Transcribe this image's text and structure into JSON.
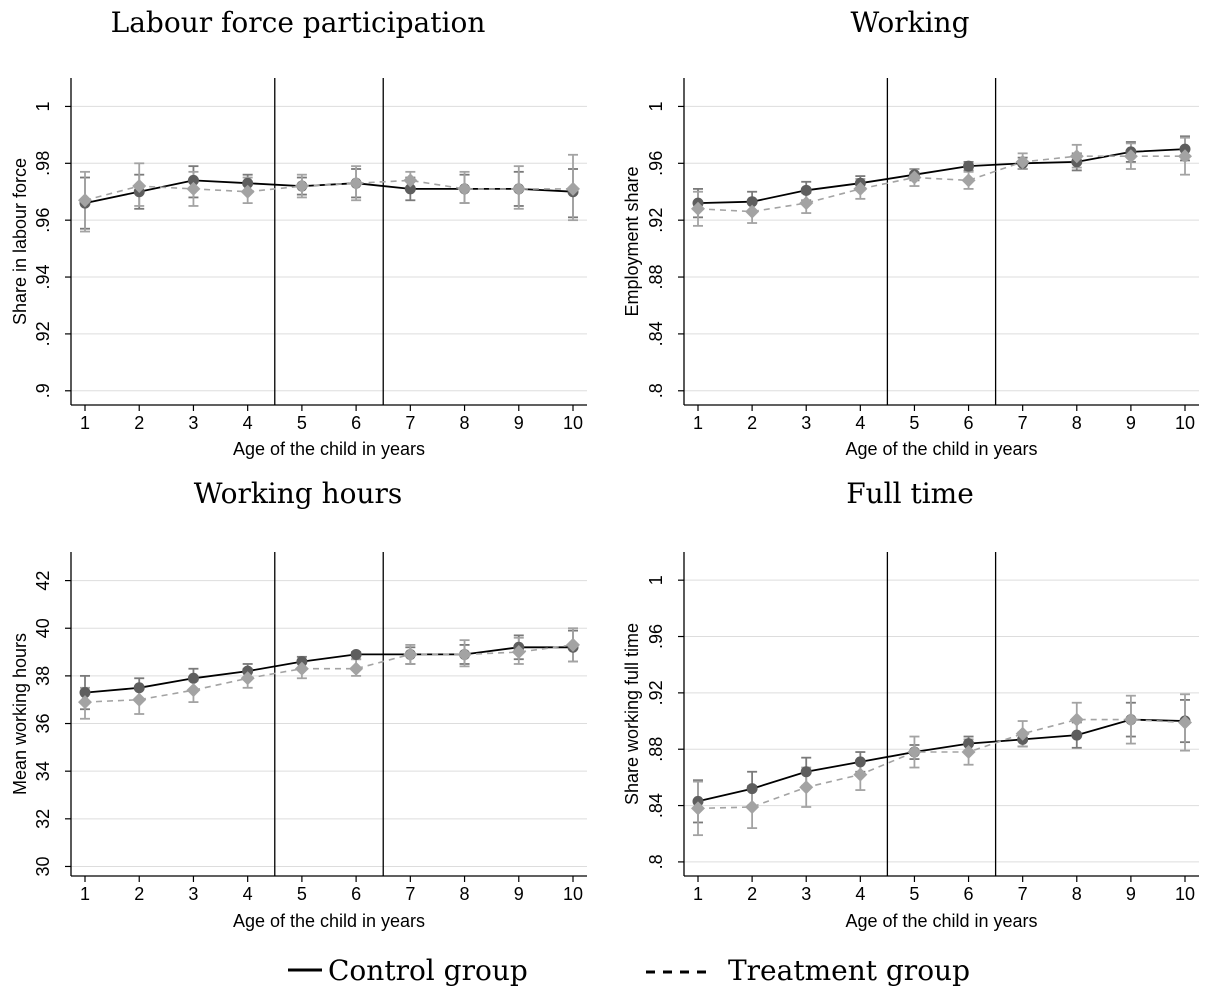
{
  "legend": {
    "control_label": "Control group",
    "treatment_label": "Treatment group"
  },
  "colors": {
    "control": "#5e5e5e",
    "control_line": "#000000",
    "treatment": "#a3a3a3",
    "grid": "#dddddd",
    "ci": "#7a7a7a"
  },
  "chart_data": [
    {
      "type": "line",
      "title": "Labour force participation",
      "xlabel": "Age of the child in years",
      "ylabel": "Share in labour force",
      "x": [
        1,
        2,
        3,
        4,
        5,
        6,
        7,
        8,
        9,
        10
      ],
      "ylim": [
        0.895,
        1.01
      ],
      "yticks": [
        0.9,
        0.92,
        0.94,
        0.96,
        0.98,
        1
      ],
      "ytick_labels": [
        ".9",
        ".92",
        ".94",
        ".96",
        ".98",
        "1"
      ],
      "vlines": [
        4.5,
        6.5
      ],
      "grid": true,
      "series": [
        {
          "name": "Control group",
          "values": [
            0.966,
            0.97,
            0.974,
            0.973,
            0.972,
            0.973,
            0.971,
            0.971,
            0.971,
            0.97
          ],
          "ci_low": [
            0.957,
            0.964,
            0.968,
            0.97,
            0.969,
            0.968,
            0.967,
            0.966,
            0.965,
            0.961
          ],
          "ci_high": [
            0.975,
            0.976,
            0.979,
            0.976,
            0.975,
            0.978,
            0.975,
            0.976,
            0.977,
            0.978
          ]
        },
        {
          "name": "Treatment group",
          "values": [
            0.967,
            0.972,
            0.971,
            0.97,
            0.972,
            0.973,
            0.974,
            0.971,
            0.971,
            0.971
          ],
          "ci_low": [
            0.956,
            0.965,
            0.965,
            0.966,
            0.968,
            0.967,
            0.971,
            0.966,
            0.964,
            0.96
          ],
          "ci_high": [
            0.977,
            0.98,
            0.977,
            0.975,
            0.976,
            0.979,
            0.977,
            0.977,
            0.979,
            0.983
          ]
        }
      ]
    },
    {
      "type": "line",
      "title": "Working",
      "xlabel": "Age of the child in years",
      "ylabel": "Employment share",
      "x": [
        1,
        2,
        3,
        4,
        5,
        6,
        7,
        8,
        9,
        10
      ],
      "ylim": [
        0.79,
        1.02
      ],
      "yticks": [
        0.8,
        0.84,
        0.88,
        0.92,
        0.96,
        1
      ],
      "ytick_labels": [
        ".8",
        ".84",
        ".88",
        ".92",
        ".96",
        "1"
      ],
      "vlines": [
        4.5,
        6.5
      ],
      "grid": true,
      "series": [
        {
          "name": "Control group",
          "values": [
            0.932,
            0.933,
            0.941,
            0.946,
            0.952,
            0.958,
            0.96,
            0.961,
            0.968,
            0.97
          ],
          "ci_low": [
            0.922,
            0.926,
            0.934,
            0.941,
            0.948,
            0.955,
            0.956,
            0.955,
            0.961,
            0.962
          ],
          "ci_high": [
            0.942,
            0.94,
            0.947,
            0.951,
            0.956,
            0.961,
            0.964,
            0.967,
            0.975,
            0.979
          ]
        },
        {
          "name": "Treatment group",
          "values": [
            0.928,
            0.926,
            0.932,
            0.942,
            0.95,
            0.948,
            0.961,
            0.965,
            0.965,
            0.965
          ],
          "ci_low": [
            0.916,
            0.918,
            0.925,
            0.935,
            0.944,
            0.942,
            0.956,
            0.957,
            0.956,
            0.952
          ],
          "ci_high": [
            0.94,
            0.934,
            0.939,
            0.949,
            0.956,
            0.954,
            0.967,
            0.973,
            0.974,
            0.978
          ]
        }
      ]
    },
    {
      "type": "line",
      "title": "Working hours",
      "xlabel": "Age of the child in years",
      "ylabel": "Mean working hours",
      "x": [
        1,
        2,
        3,
        4,
        5,
        6,
        7,
        8,
        9,
        10
      ],
      "ylim": [
        29.6,
        43.2
      ],
      "yticks": [
        30,
        32,
        34,
        36,
        38,
        40,
        42
      ],
      "ytick_labels": [
        "30",
        "32",
        "34",
        "36",
        "38",
        "40",
        "42"
      ],
      "vlines": [
        4.5,
        6.5
      ],
      "grid": true,
      "series": [
        {
          "name": "Control group",
          "values": [
            37.3,
            37.5,
            37.9,
            38.2,
            38.6,
            38.9,
            38.9,
            38.9,
            39.2,
            39.2
          ],
          "ci_low": [
            36.6,
            37.0,
            37.4,
            37.9,
            38.3,
            38.7,
            38.5,
            38.5,
            38.7,
            38.6
          ],
          "ci_high": [
            38.0,
            37.9,
            38.3,
            38.5,
            38.8,
            39.0,
            39.2,
            39.3,
            39.7,
            39.9
          ]
        },
        {
          "name": "Treatment group",
          "values": [
            36.9,
            37.0,
            37.4,
            37.9,
            38.3,
            38.3,
            38.9,
            38.9,
            39.0,
            39.3
          ],
          "ci_low": [
            36.2,
            36.4,
            36.9,
            37.5,
            37.9,
            38.0,
            38.5,
            38.4,
            38.5,
            38.6
          ],
          "ci_high": [
            37.5,
            37.5,
            37.8,
            38.3,
            38.6,
            38.7,
            39.3,
            39.5,
            39.6,
            40.0
          ]
        }
      ]
    },
    {
      "type": "line",
      "title": "Full time",
      "xlabel": "Age of the child in years",
      "ylabel": "Share working full time",
      "x": [
        1,
        2,
        3,
        4,
        5,
        6,
        7,
        8,
        9,
        10
      ],
      "ylim": [
        0.79,
        1.02
      ],
      "yticks": [
        0.8,
        0.84,
        0.88,
        0.92,
        0.96,
        1
      ],
      "ytick_labels": [
        ".8",
        ".84",
        ".88",
        ".92",
        ".96",
        "1"
      ],
      "vlines": [
        4.5,
        6.5
      ],
      "grid": true,
      "series": [
        {
          "name": "Control group",
          "values": [
            0.843,
            0.852,
            0.864,
            0.871,
            0.878,
            0.884,
            0.887,
            0.89,
            0.901,
            0.9
          ],
          "ci_low": [
            0.828,
            0.84,
            0.854,
            0.864,
            0.873,
            0.879,
            0.882,
            0.881,
            0.889,
            0.885
          ],
          "ci_high": [
            0.858,
            0.864,
            0.874,
            0.878,
            0.883,
            0.889,
            0.892,
            0.899,
            0.913,
            0.915
          ]
        },
        {
          "name": "Treatment group",
          "values": [
            0.838,
            0.839,
            0.853,
            0.862,
            0.878,
            0.878,
            0.891,
            0.901,
            0.901,
            0.899
          ],
          "ci_low": [
            0.819,
            0.824,
            0.839,
            0.851,
            0.867,
            0.869,
            0.882,
            0.889,
            0.884,
            0.879
          ],
          "ci_high": [
            0.857,
            0.854,
            0.867,
            0.872,
            0.889,
            0.887,
            0.9,
            0.913,
            0.918,
            0.919
          ]
        }
      ]
    }
  ]
}
